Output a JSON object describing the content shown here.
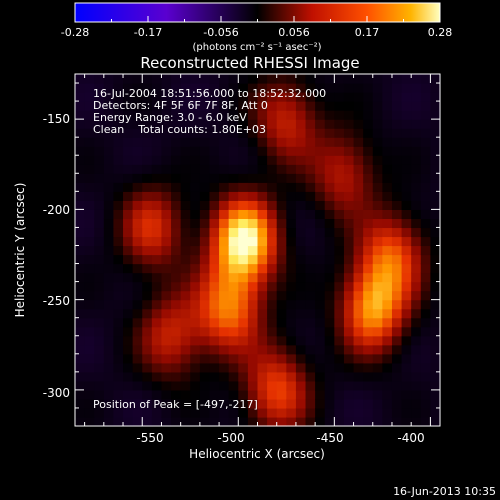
{
  "colorbar": {
    "ticks": [
      "-0.28",
      "-0.17",
      "-0.056",
      "0.056",
      "0.17",
      "0.28"
    ],
    "unit_label": "(photons cm⁻² s⁻¹ asec⁻²)",
    "range": [
      -0.28,
      0.28
    ]
  },
  "plot": {
    "title": "Reconstructed RHESSI Image",
    "info_lines": [
      "16-Jul-2004 18:51:56.000 to 18:52:32.000",
      "Detectors: 4F 5F 6F 7F 8F, Att 0",
      "Energy Range: 3.0 - 6.0 keV",
      "Clean    Total counts: 1.80E+03"
    ],
    "peak_text": "Position of Peak = [-497,-217]",
    "xlabel": "Heliocentric X (arcsec)",
    "ylabel": "Heliocentric Y (arcsec)",
    "x_ticks": [
      "-550",
      "-500",
      "-450",
      "-400"
    ],
    "y_ticks": [
      "-150",
      "-200",
      "-250",
      "-300"
    ]
  },
  "footer": {
    "timestamp": "16-Jun-2013 10:35"
  },
  "chart_data": {
    "type": "heatmap",
    "title": "Reconstructed RHESSI Image",
    "xlabel": "Heliocentric X (arcsec)",
    "ylabel": "Heliocentric Y (arcsec)",
    "xlim": [
      -585,
      -395
    ],
    "ylim": [
      -320,
      -125
    ],
    "x_ticks": [
      -550,
      -500,
      -450,
      -400
    ],
    "y_ticks": [
      -150,
      -200,
      -250,
      -300
    ],
    "colorbar_range": [
      -0.28,
      0.28
    ],
    "peak_position": [
      -497,
      -217
    ],
    "sources": [
      {
        "x": -497,
        "y": -217,
        "value": 0.28
      },
      {
        "x": -505,
        "y": -255,
        "value": 0.16
      },
      {
        "x": -480,
        "y": -300,
        "value": 0.13
      },
      {
        "x": -430,
        "y": -255,
        "value": 0.19
      },
      {
        "x": -420,
        "y": -225,
        "value": 0.13
      },
      {
        "x": -545,
        "y": -210,
        "value": 0.1
      },
      {
        "x": -535,
        "y": -270,
        "value": 0.09
      },
      {
        "x": -475,
        "y": -150,
        "value": 0.09
      },
      {
        "x": -445,
        "y": -180,
        "value": 0.08
      }
    ]
  }
}
